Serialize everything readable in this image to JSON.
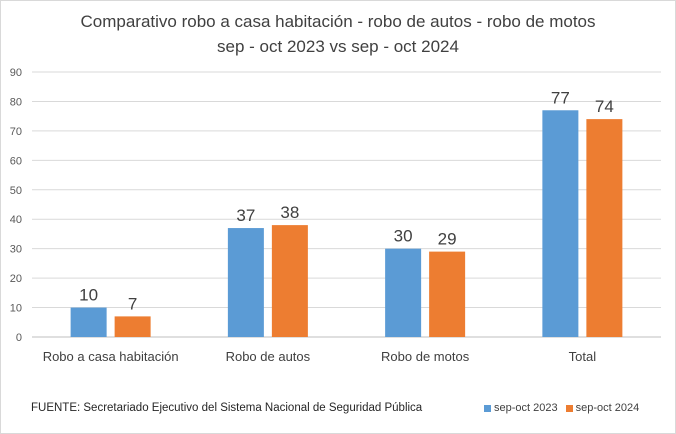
{
  "chart_data": {
    "type": "bar",
    "title": "Comparativo robo a casa habitación - robo de autos - robo de motos",
    "subtitle": "sep - oct 2023 vs sep - oct 2024",
    "categories": [
      "Robo a casa habitación",
      "Robo de autos",
      "Robo de motos",
      "Total"
    ],
    "series": [
      {
        "name": "sep-oct 2023",
        "color": "#5b9bd5",
        "values": [
          10,
          37,
          30,
          77
        ]
      },
      {
        "name": "sep-oct 2024",
        "color": "#ed7d31",
        "values": [
          7,
          38,
          29,
          74
        ]
      }
    ],
    "ylim": [
      0,
      90
    ],
    "yticks": [
      "0",
      "10",
      "20",
      "30",
      "40",
      "50",
      "60",
      "70",
      "80",
      "90"
    ],
    "grid": true,
    "legend_position": "bottom-right",
    "source": "FUENTE:  Secretariado Ejecutivo del Sistema Nacional de Seguridad Pública"
  }
}
